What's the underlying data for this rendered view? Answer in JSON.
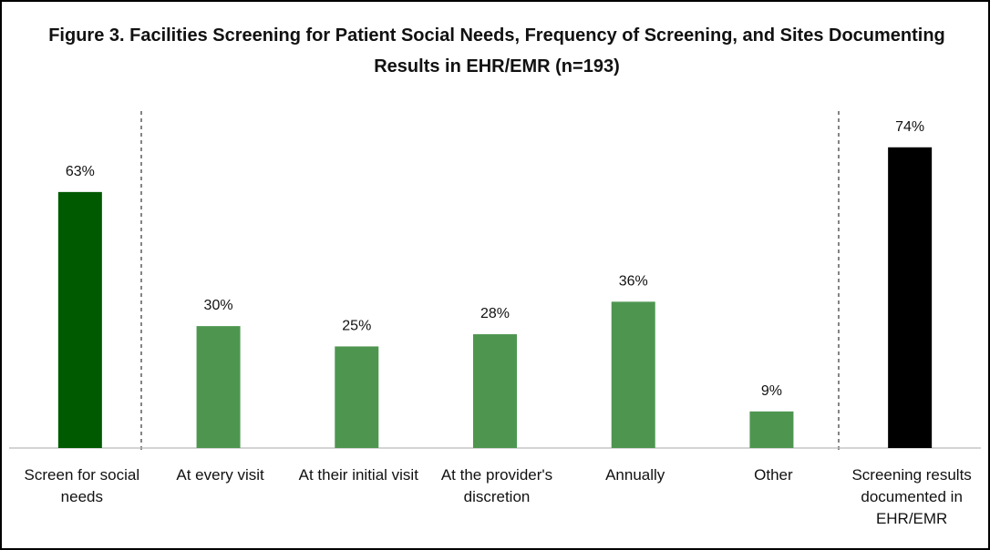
{
  "chart_data": {
    "type": "bar",
    "title": "Figure 3. Facilities Screening for Patient Social Needs, Frequency of Screening, and Sites Documenting Results in EHR/EMR (n=193)",
    "categories": [
      "Screen for social needs",
      "At every visit",
      "At their initial visit",
      "At the provider's discretion",
      "Annually",
      "Other",
      "Screening results documented in EHR/EMR"
    ],
    "values": [
      63,
      30,
      25,
      28,
      36,
      9,
      74
    ],
    "value_labels": [
      "63%",
      "30%",
      "25%",
      "28%",
      "36%",
      "9%",
      "74%"
    ],
    "colors": [
      "#005a00",
      "#4e9650",
      "#4e9650",
      "#4e9650",
      "#4e9650",
      "#4e9650",
      "#000000"
    ],
    "ylim": [
      0,
      80
    ]
  }
}
